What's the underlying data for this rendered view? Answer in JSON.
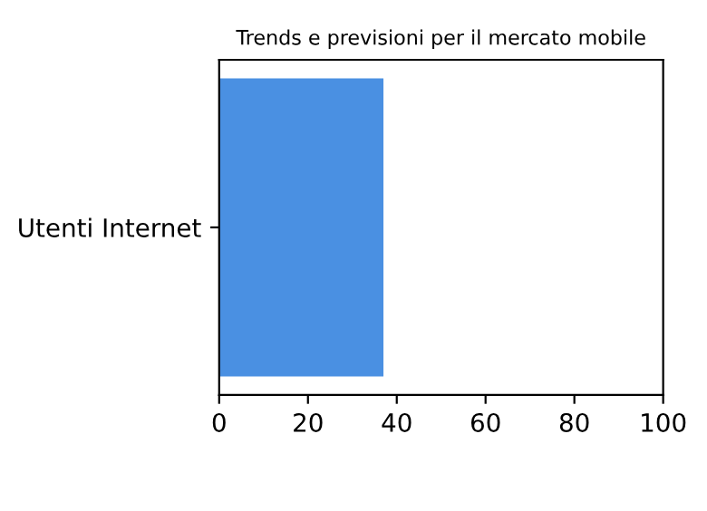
{
  "chart_data": {
    "type": "bar",
    "orientation": "horizontal",
    "title": "Trends e previsioni per il mercato mobile",
    "categories": [
      "Utenti Internet"
    ],
    "values": [
      37
    ],
    "color": "#4a90e2",
    "xlim": [
      0,
      100
    ],
    "xticks": [
      0,
      20,
      40,
      60,
      80,
      100
    ],
    "grid": false,
    "legend": false
  }
}
